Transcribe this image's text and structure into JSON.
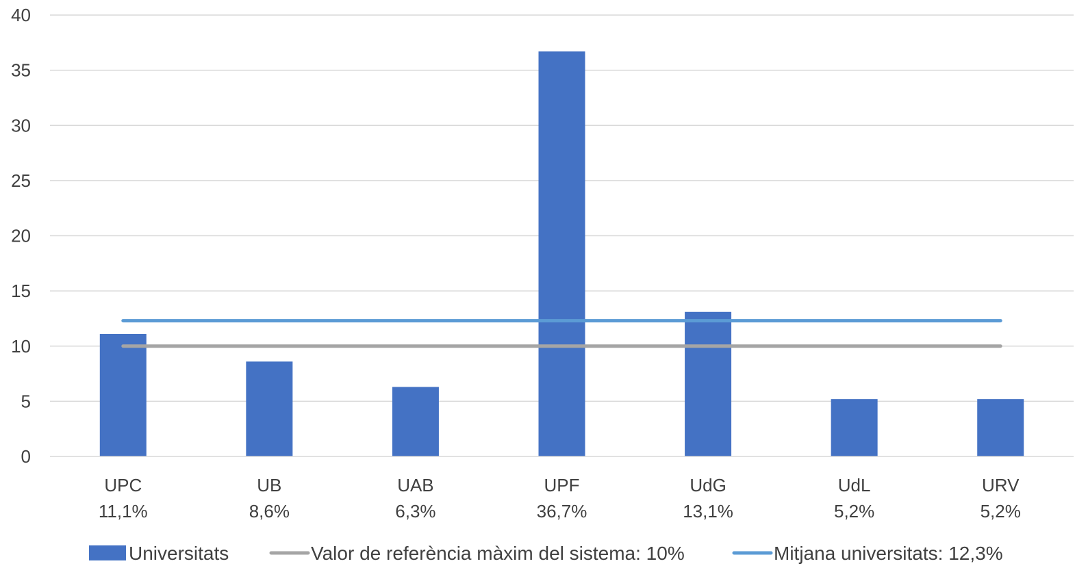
{
  "chart_data": {
    "type": "bar",
    "title": "",
    "xlabel": "",
    "ylabel": "",
    "ylim": [
      0,
      40
    ],
    "yticks": [
      0,
      5,
      10,
      15,
      20,
      25,
      30,
      35,
      40
    ],
    "grid": true,
    "legend_position": "bottom",
    "categories": [
      "UPC",
      "UB",
      "UAB",
      "UPF",
      "UdG",
      "UdL",
      "URV"
    ],
    "category_sublabels": [
      "11,1%",
      "8,6%",
      "6,3%",
      "36,7%",
      "13,1%",
      "5,2%",
      "5,2%"
    ],
    "series": [
      {
        "name": "Universitats",
        "type": "bar",
        "color": "#4472C4",
        "values": [
          11.1,
          8.6,
          6.3,
          36.7,
          13.1,
          5.2,
          5.2
        ]
      },
      {
        "name": "Valor de referència màxim del sistema: 10%",
        "type": "line",
        "color": "#A5A5A5",
        "values": [
          10,
          10,
          10,
          10,
          10,
          10,
          10
        ]
      },
      {
        "name": "Mitjana universitats: 12,3%",
        "type": "line",
        "color": "#5B9BD5",
        "values": [
          12.3,
          12.3,
          12.3,
          12.3,
          12.3,
          12.3,
          12.3
        ]
      }
    ],
    "gridline_color": "#D9D9D9",
    "axis_color": "#D9D9D9"
  }
}
